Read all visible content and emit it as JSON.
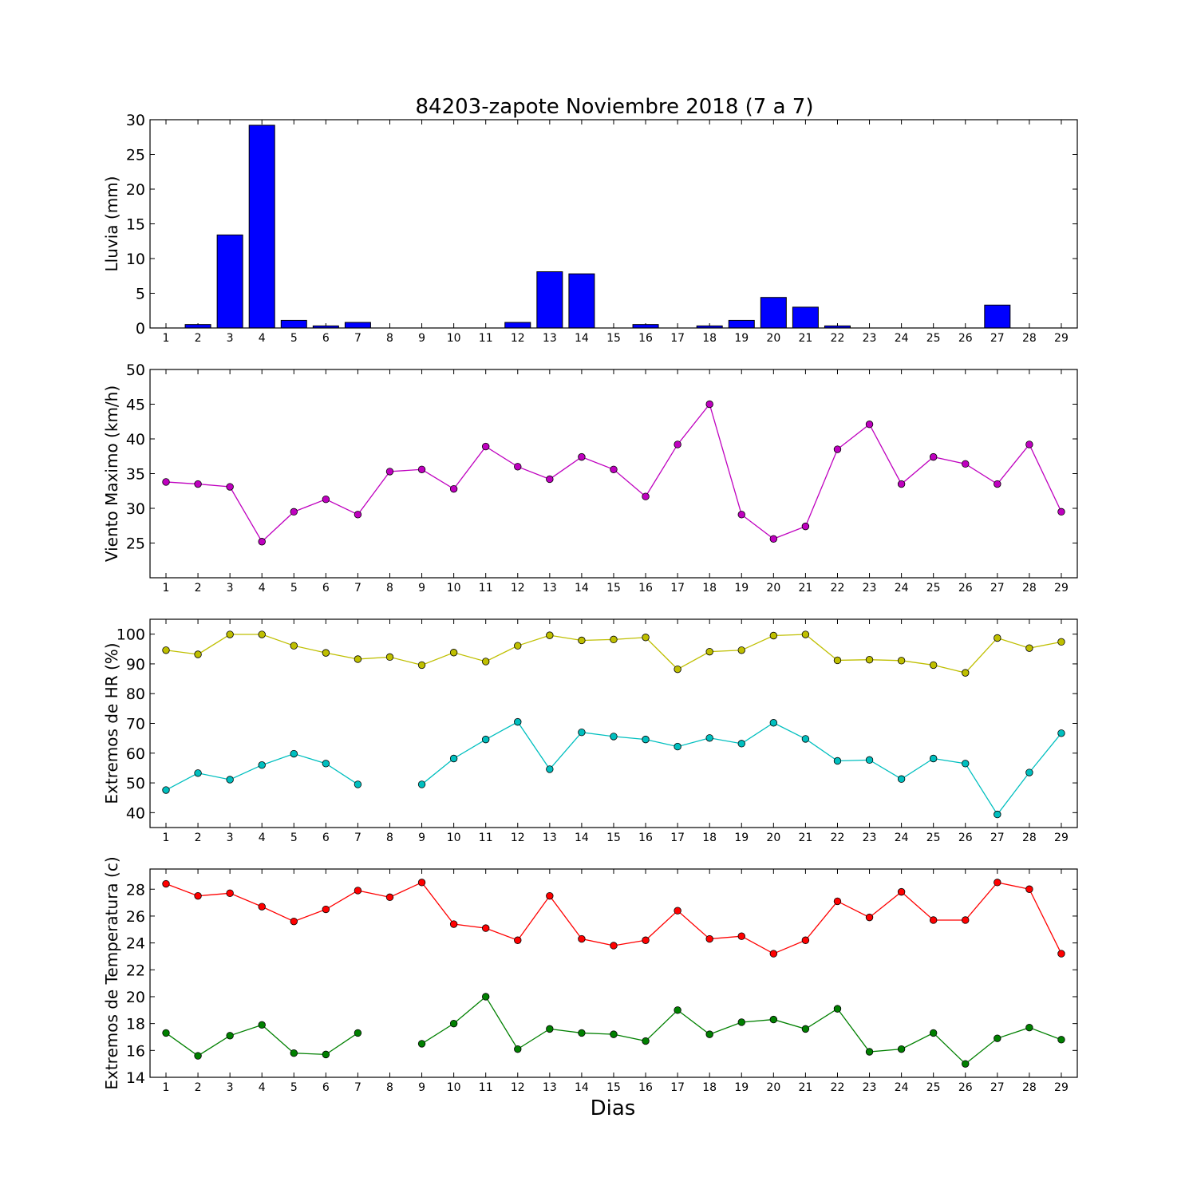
{
  "title": "84203-zapote Noviembre 2018  (7 a 7)",
  "xlabel": "Dias",
  "chart_data": [
    {
      "type": "bar",
      "ylabel": "Lluvia (mm)",
      "ylim": [
        0,
        30
      ],
      "yticks": [
        0,
        5,
        10,
        15,
        20,
        25,
        30
      ],
      "categories": [
        "1",
        "2",
        "3",
        "4",
        "5",
        "6",
        "7",
        "8",
        "9",
        "10",
        "11",
        "12",
        "13",
        "14",
        "15",
        "16",
        "17",
        "18",
        "19",
        "20",
        "21",
        "22",
        "23",
        "24",
        "25",
        "26",
        "27",
        "28",
        "29"
      ],
      "series": [
        {
          "color": "#0000ff",
          "values": [
            0,
            0.5,
            13.4,
            29.2,
            1.1,
            0.3,
            0.8,
            0,
            0,
            0,
            0,
            0.8,
            8.1,
            7.8,
            0,
            0.5,
            0,
            0.3,
            1.1,
            4.4,
            3.0,
            0.3,
            0,
            0,
            0,
            0,
            3.3,
            0,
            0
          ]
        }
      ]
    },
    {
      "type": "line",
      "ylabel": "Viento Maximo (km/h)",
      "ylim": [
        20,
        50
      ],
      "yticks": [
        25,
        30,
        35,
        40,
        45,
        50
      ],
      "categories": [
        "1",
        "2",
        "3",
        "4",
        "5",
        "6",
        "7",
        "8",
        "9",
        "10",
        "11",
        "12",
        "13",
        "14",
        "15",
        "16",
        "17",
        "18",
        "19",
        "20",
        "21",
        "22",
        "23",
        "24",
        "25",
        "26",
        "27",
        "28",
        "29"
      ],
      "series": [
        {
          "color": "#bf00bf",
          "values": [
            33.8,
            33.5,
            33.1,
            25.2,
            29.5,
            31.3,
            29.1,
            35.3,
            35.6,
            32.8,
            38.9,
            36.0,
            34.2,
            37.4,
            35.6,
            31.7,
            39.2,
            45.0,
            29.1,
            25.6,
            27.4,
            38.5,
            42.1,
            33.5,
            37.4,
            36.4,
            33.5,
            39.2,
            29.5
          ]
        }
      ]
    },
    {
      "type": "line",
      "ylabel": "Extremos de HR (%)",
      "ylim": [
        35,
        105
      ],
      "yticks": [
        40,
        50,
        60,
        70,
        80,
        90,
        100
      ],
      "categories": [
        "1",
        "2",
        "3",
        "4",
        "5",
        "6",
        "7",
        "8",
        "9",
        "10",
        "11",
        "12",
        "13",
        "14",
        "15",
        "16",
        "17",
        "18",
        "19",
        "20",
        "21",
        "22",
        "23",
        "24",
        "25",
        "26",
        "27",
        "28",
        "29"
      ],
      "series": [
        {
          "color": "#bfbf00",
          "values": [
            94.6,
            93.2,
            99.9,
            99.9,
            96.1,
            93.7,
            91.6,
            92.3,
            89.6,
            93.8,
            90.8,
            96.1,
            99.6,
            97.9,
            98.2,
            98.9,
            88.2,
            94.1,
            94.6,
            99.5,
            99.9,
            91.2,
            91.4,
            91.1,
            89.6,
            87.0,
            98.7,
            95.3,
            97.4
          ]
        },
        {
          "color": "#00bfbf",
          "values": [
            47.6,
            53.3,
            51.1,
            56.0,
            59.8,
            56.5,
            49.5,
            null,
            49.5,
            58.2,
            64.6,
            70.5,
            54.6,
            67.0,
            65.6,
            64.6,
            62.2,
            65.1,
            63.2,
            70.2,
            64.8,
            57.4,
            57.7,
            51.3,
            58.2,
            56.5,
            39.4,
            53.5,
            66.7
          ]
        }
      ]
    },
    {
      "type": "line",
      "ylabel": "Extremos de Temperatura (c)",
      "ylim": [
        14,
        29.5
      ],
      "yticks": [
        14,
        16,
        18,
        20,
        22,
        24,
        26,
        28
      ],
      "categories": [
        "1",
        "2",
        "3",
        "4",
        "5",
        "6",
        "7",
        "8",
        "9",
        "10",
        "11",
        "12",
        "13",
        "14",
        "15",
        "16",
        "17",
        "18",
        "19",
        "20",
        "21",
        "22",
        "23",
        "24",
        "25",
        "26",
        "27",
        "28",
        "29"
      ],
      "series": [
        {
          "color": "#ff0000",
          "values": [
            28.4,
            27.5,
            27.7,
            26.7,
            25.6,
            26.5,
            27.9,
            27.4,
            28.5,
            25.4,
            25.1,
            24.2,
            27.5,
            24.3,
            23.8,
            24.2,
            26.4,
            24.3,
            24.5,
            23.2,
            24.2,
            27.1,
            25.9,
            27.8,
            25.7,
            25.7,
            28.5,
            28.0,
            23.2
          ]
        },
        {
          "color": "#008000",
          "values": [
            17.3,
            15.6,
            17.1,
            17.9,
            15.8,
            15.7,
            17.3,
            null,
            16.5,
            18.0,
            20.0,
            16.1,
            17.6,
            17.3,
            17.2,
            16.7,
            19.0,
            17.2,
            18.1,
            18.3,
            17.6,
            19.1,
            15.9,
            16.1,
            17.3,
            15.0,
            16.9,
            17.7,
            16.8
          ]
        }
      ]
    }
  ]
}
